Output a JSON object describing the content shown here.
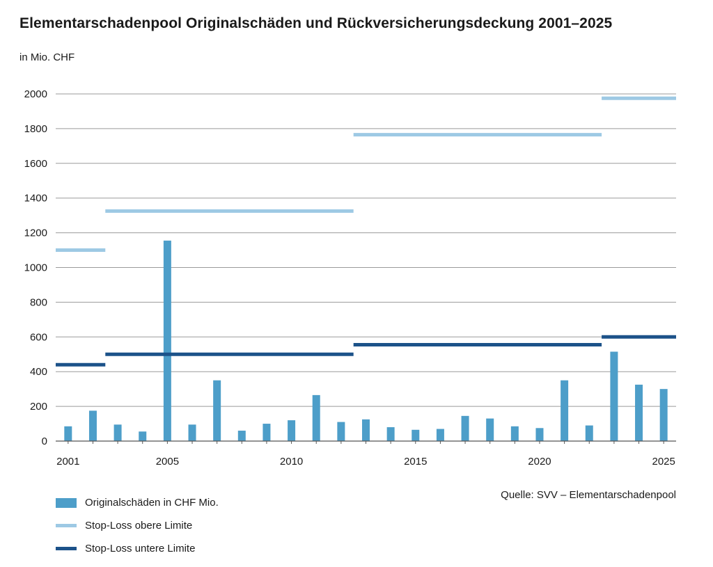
{
  "title": "Elementarschadenpool Originalschäden und Rückversicherungsdeckung 2001–2025",
  "unit_label": "in Mio. CHF",
  "source": "Quelle: SVV – Elementarschadenpool",
  "colors": {
    "bar": "#4d9ec9",
    "upper": "#9dc9e4",
    "lower": "#1c5289",
    "grid": "#9a9a9a",
    "axis": "#555555"
  },
  "legend": [
    {
      "label": "Originalschäden in CHF Mio.",
      "kind": "bar",
      "color": "#4d9ec9"
    },
    {
      "label": "Stop-Loss obere Limite",
      "kind": "line",
      "color": "#9dc9e4"
    },
    {
      "label": "Stop-Loss untere Limite",
      "kind": "line",
      "color": "#1c5289"
    }
  ],
  "chart_data": {
    "type": "bar",
    "ylim": [
      0,
      2000
    ],
    "yticks": [
      0,
      200,
      400,
      600,
      800,
      1000,
      1200,
      1400,
      1600,
      1800,
      2000
    ],
    "xtick_labels": [
      2001,
      2005,
      2010,
      2015,
      2020,
      2025
    ],
    "grid": true,
    "categories": [
      2001,
      2002,
      2003,
      2004,
      2005,
      2006,
      2007,
      2008,
      2009,
      2010,
      2011,
      2012,
      2013,
      2014,
      2015,
      2016,
      2017,
      2018,
      2019,
      2020,
      2021,
      2022,
      2023,
      2024,
      2025
    ],
    "series": [
      {
        "name": "Originalschäden in CHF Mio.",
        "type": "bar",
        "values": [
          85,
          175,
          95,
          55,
          1155,
          95,
          350,
          60,
          100,
          120,
          265,
          110,
          125,
          80,
          65,
          70,
          145,
          130,
          85,
          75,
          350,
          90,
          515,
          325,
          300
        ]
      }
    ],
    "stop_loss": [
      {
        "name": "Stop-Loss obere Limite",
        "segments": [
          {
            "from": 2001,
            "to": 2003,
            "value": 1100
          },
          {
            "from": 2003,
            "to": 2013,
            "value": 1325
          },
          {
            "from": 2013,
            "to": 2023,
            "value": 1765
          },
          {
            "from": 2023,
            "to": 2025,
            "value": 1975
          }
        ]
      },
      {
        "name": "Stop-Loss untere Limite",
        "segments": [
          {
            "from": 2001,
            "to": 2003,
            "value": 440
          },
          {
            "from": 2003,
            "to": 2013,
            "value": 500
          },
          {
            "from": 2013,
            "to": 2023,
            "value": 555
          },
          {
            "from": 2023,
            "to": 2025,
            "value": 600
          }
        ]
      }
    ]
  }
}
